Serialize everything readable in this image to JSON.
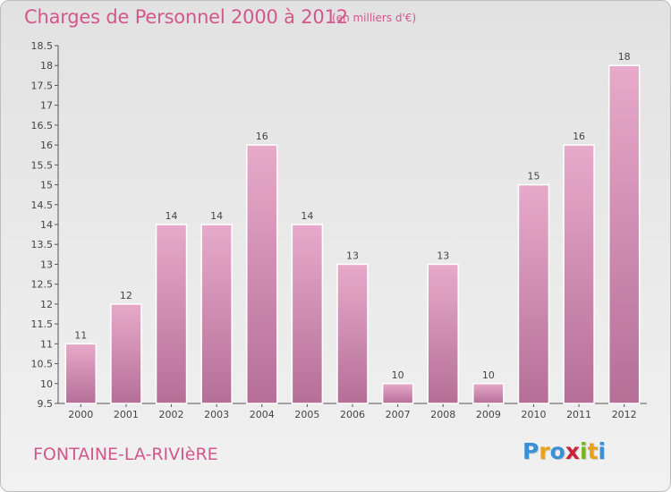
{
  "chart_data": {
    "type": "bar",
    "title": "Charges de Personnel 2000 à 2012",
    "subtitle": "(en milliers d'€)",
    "categories": [
      "2000",
      "2001",
      "2002",
      "2003",
      "2004",
      "2005",
      "2006",
      "2007",
      "2008",
      "2009",
      "2010",
      "2011",
      "2012"
    ],
    "values": [
      11,
      12,
      14,
      14,
      16,
      14,
      13,
      10,
      13,
      10,
      15,
      16,
      18
    ],
    "ylim": [
      9.5,
      18.5
    ],
    "yticks": [
      "9.5",
      "10",
      "10.5",
      "11",
      "11.5",
      "12",
      "12.5",
      "13",
      "13.5",
      "14",
      "14.5",
      "15",
      "15.5",
      "16",
      "16.5",
      "17",
      "17.5",
      "18",
      "18.5"
    ],
    "grid": false,
    "bar_color": "#c9709e"
  },
  "footer": {
    "commune": "FONTAINE-LA-RIVIèRE",
    "logo_letters": [
      "P",
      "r",
      "o",
      "x",
      "i",
      "t",
      "i"
    ],
    "logo_colors": [
      "#3b8fd4",
      "#e6a21a",
      "#3b8fd4",
      "#c8233c",
      "#79b51d",
      "#e6a21a",
      "#3b8fd4"
    ]
  }
}
